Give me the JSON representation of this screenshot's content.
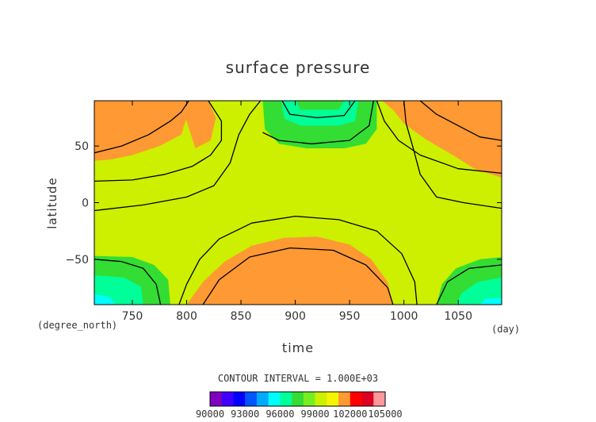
{
  "chart_data": {
    "type": "heatmap",
    "title": "surface pressure",
    "xlabel": "time",
    "ylabel": "latitude",
    "x_unit": "(day)",
    "y_unit": "(degree_north)",
    "xlim": [
      715,
      1090
    ],
    "ylim": [
      -90,
      90
    ],
    "x_ticks": [
      750,
      800,
      850,
      900,
      950,
      1000,
      1050
    ],
    "y_ticks": [
      50,
      0,
      -50
    ],
    "y_tick_labels": [
      "50",
      "0",
      "−50"
    ],
    "contour_interval_text": "CONTOUR INTERVAL = 1.000E+03",
    "colorbar_labels": [
      "90000",
      "93000",
      "96000",
      "99000",
      "102000",
      "105000"
    ],
    "colorbar_ticks": [
      90000,
      93000,
      96000,
      99000,
      102000,
      105000
    ],
    "levels": [
      90000,
      91000,
      92000,
      93000,
      94000,
      95000,
      96000,
      97000,
      98000,
      99000,
      100000,
      101000,
      102000,
      103000,
      104000,
      105000
    ],
    "level_colors": [
      "#7f00bf",
      "#3f00ff",
      "#0000ff",
      "#0055ff",
      "#00aaff",
      "#00ffff",
      "#00ff99",
      "#33dd33",
      "#77ee22",
      "#ccf000",
      "#f5f500",
      "#ff9933",
      "#ff0000",
      "#dd0022",
      "#ff9999"
    ],
    "field_description": "seasonal surface pressure with high-pressure lobes in the winter hemisphere and low-pressure cells near the poles",
    "regions": [
      {
        "level_band": "96000-97000",
        "color": "#00ff99",
        "where": "north pole, t 885-945"
      },
      {
        "level_band": "97000-98000",
        "color": "#33dd33",
        "where": "polar lows near 880-960 N, 720-785 S, 1030-1090 S"
      },
      {
        "level_band": "99000-101000",
        "color": "#ccf000",
        "where": "background"
      },
      {
        "level_band": "101000-102000",
        "color": "#ff9933",
        "where": "high-pressure lobes"
      }
    ]
  },
  "colors": {
    "background": "#ffffff",
    "frame": "#000000",
    "low_core": "#00ffff",
    "low_1": "#00ff99",
    "low_2": "#33dd33",
    "mid": "#ccf000",
    "high": "#ff9933"
  }
}
